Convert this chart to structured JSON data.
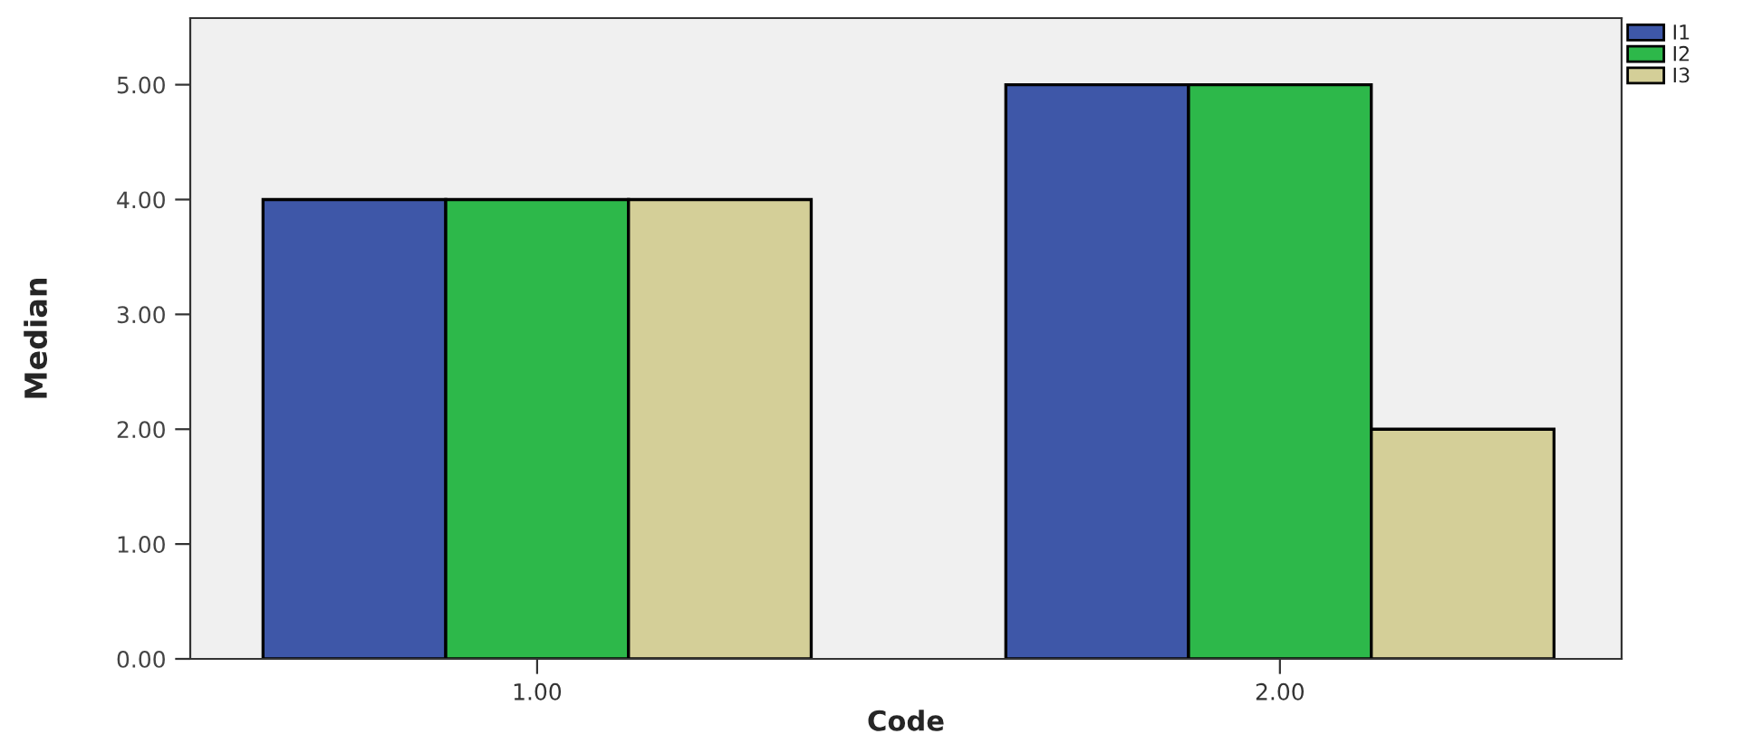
{
  "chart_data": {
    "type": "bar",
    "xlabel": "Code",
    "ylabel": "Median",
    "categories": [
      "1.00",
      "2.00"
    ],
    "series": [
      {
        "name": "I1",
        "color": "#3e57a8",
        "values": [
          4,
          5
        ]
      },
      {
        "name": "I2",
        "color": "#2db84a",
        "values": [
          4,
          5
        ]
      },
      {
        "name": "I3",
        "color": "#d4cf98",
        "values": [
          4,
          2
        ]
      }
    ],
    "ylim": [
      0,
      5.58
    ],
    "yticks": [
      {
        "value": 0,
        "label": "0.00"
      },
      {
        "value": 1,
        "label": "1.00"
      },
      {
        "value": 2,
        "label": "2.00"
      },
      {
        "value": 3,
        "label": "3.00"
      },
      {
        "value": 4,
        "label": "4.00"
      },
      {
        "value": 5,
        "label": "5.00"
      }
    ],
    "grid": false,
    "legend": "top right"
  }
}
